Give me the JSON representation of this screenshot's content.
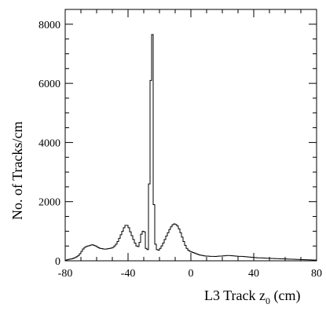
{
  "chart_data": {
    "type": "histogram",
    "xlabel_main": "L3 Track z",
    "xlabel_sub": "0",
    "xlabel_unit": " (cm)",
    "ylabel": "No. of Tracks/cm",
    "xlim": [
      -80,
      80
    ],
    "ylim": [
      0,
      8500
    ],
    "xticks": [
      -80,
      -40,
      0,
      40,
      80
    ],
    "xtick_labels": [
      "-80",
      "-40",
      "0",
      "40",
      "80"
    ],
    "yticks": [
      0,
      2000,
      4000,
      6000,
      8000
    ],
    "ytick_labels": [
      "0",
      "2000",
      "4000",
      "6000",
      "8000"
    ],
    "grid": false,
    "bin_width": 1,
    "bin_edges_start": -80,
    "values": [
      20,
      35,
      50,
      60,
      70,
      90,
      110,
      140,
      180,
      240,
      320,
      400,
      450,
      480,
      500,
      510,
      530,
      540,
      520,
      500,
      470,
      440,
      420,
      410,
      400,
      395,
      400,
      410,
      420,
      430,
      450,
      500,
      560,
      650,
      760,
      880,
      1000,
      1120,
      1200,
      1200,
      1120,
      980,
      850,
      720,
      600,
      500,
      480,
      620,
      900,
      1000,
      980,
      420,
      380,
      2600,
      6100,
      7650,
      1900,
      560,
      380,
      360,
      420,
      500,
      600,
      720,
      840,
      950,
      1060,
      1150,
      1220,
      1250,
      1230,
      1180,
      1080,
      950,
      800,
      650,
      520,
      420,
      360,
      320,
      300,
      280,
      260,
      240,
      220,
      200,
      190,
      180,
      170,
      160,
      160,
      155,
      150,
      150,
      148,
      146,
      150,
      155,
      160,
      160,
      165,
      170,
      175,
      180,
      180,
      175,
      170,
      165,
      160,
      155,
      150,
      150,
      148,
      146,
      140,
      135,
      130,
      125,
      120,
      115,
      110,
      105,
      100,
      100,
      98,
      95,
      92,
      90,
      88,
      85,
      82,
      80,
      78,
      76,
      74,
      72,
      70,
      68,
      66,
      64,
      62,
      60,
      58,
      56,
      54,
      52,
      50,
      48,
      46,
      44,
      42,
      40,
      38,
      36,
      34,
      32,
      30,
      28,
      26,
      24
    ]
  }
}
